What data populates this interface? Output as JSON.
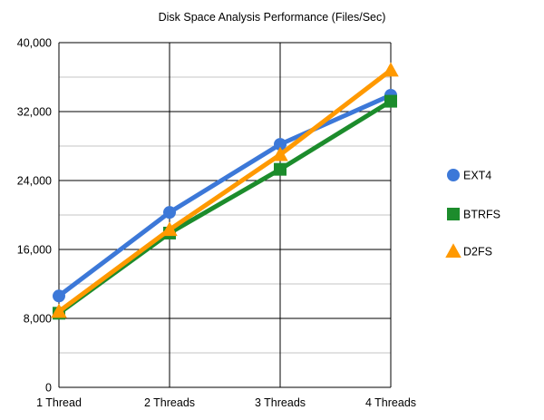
{
  "chart_data": {
    "type": "line",
    "title": "Disk Space Analysis Performance (Files/Sec)",
    "xlabel": "",
    "ylabel": "",
    "categories": [
      "1 Thread",
      "2 Threads",
      "3 Threads",
      "4 Threads"
    ],
    "ylim": [
      0,
      40000
    ],
    "y_ticks": [
      0,
      8000,
      16000,
      24000,
      32000,
      40000
    ],
    "y_tick_labels": [
      "0",
      "8,000",
      "16,000",
      "24,000",
      "32,000",
      "40,000"
    ],
    "grid": true,
    "legend_position": "right",
    "series": [
      {
        "name": "EXT4",
        "values": [
          10600,
          20300,
          28200,
          33900
        ],
        "color": "#3c78d8",
        "marker": "circle"
      },
      {
        "name": "BTRFS",
        "values": [
          8600,
          17900,
          25300,
          33200
        ],
        "color": "#1c8c2c",
        "marker": "square"
      },
      {
        "name": "D2FS",
        "values": [
          8800,
          18300,
          27000,
          36800
        ],
        "color": "#ff9900",
        "marker": "triangle"
      }
    ]
  }
}
